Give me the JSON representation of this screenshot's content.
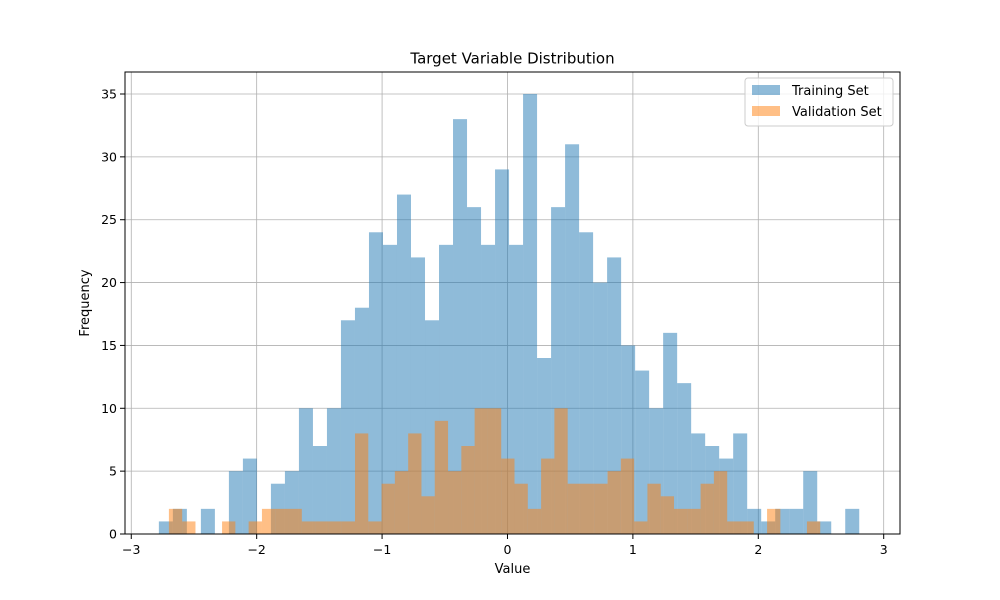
{
  "chart_data": {
    "type": "bar",
    "title": "Target Variable Distribution",
    "xlabel": "Value",
    "ylabel": "Frequency",
    "xlim": [
      -3.05,
      3.13
    ],
    "ylim": [
      0,
      36.75
    ],
    "xticks": [
      -3,
      -2,
      -1,
      0,
      1,
      2,
      3
    ],
    "xtick_labels": [
      "−3",
      "−2",
      "−1",
      "0",
      "1",
      "2",
      "3"
    ],
    "yticks": [
      0,
      5,
      10,
      15,
      20,
      25,
      30,
      35
    ],
    "ytick_labels": [
      "0",
      "5",
      "10",
      "15",
      "20",
      "25",
      "30",
      "35"
    ],
    "grid": true,
    "legend": "top-right",
    "series": [
      {
        "name": "Training Set",
        "color": "#1f77b4",
        "opacity": 0.5,
        "bin_start": -2.78,
        "bin_width": 0.1117,
        "values": [
          1,
          2,
          0,
          2,
          0,
          5,
          6,
          0,
          4,
          5,
          10,
          7,
          10,
          17,
          18,
          24,
          23,
          27,
          22,
          17,
          23,
          33,
          26,
          23,
          29,
          23,
          35,
          14,
          26,
          31,
          24,
          20,
          22,
          15,
          13,
          10,
          16,
          12,
          8,
          7,
          6,
          8,
          2,
          1,
          2,
          2,
          5,
          1,
          0,
          2
        ]
      },
      {
        "name": "Validation Set",
        "color": "#ff7f0e",
        "opacity": 0.5,
        "bin_start": -2.7,
        "bin_width": 0.106,
        "values": [
          2,
          1,
          0,
          0,
          1,
          0,
          1,
          2,
          2,
          2,
          1,
          1,
          1,
          1,
          8,
          1,
          4,
          5,
          8,
          3,
          9,
          5,
          7,
          10,
          10,
          6,
          4,
          2,
          6,
          10,
          4,
          4,
          4,
          5,
          6,
          1,
          4,
          3,
          2,
          2,
          4,
          5,
          1,
          1,
          0,
          2,
          0,
          0,
          1,
          0
        ]
      }
    ]
  }
}
